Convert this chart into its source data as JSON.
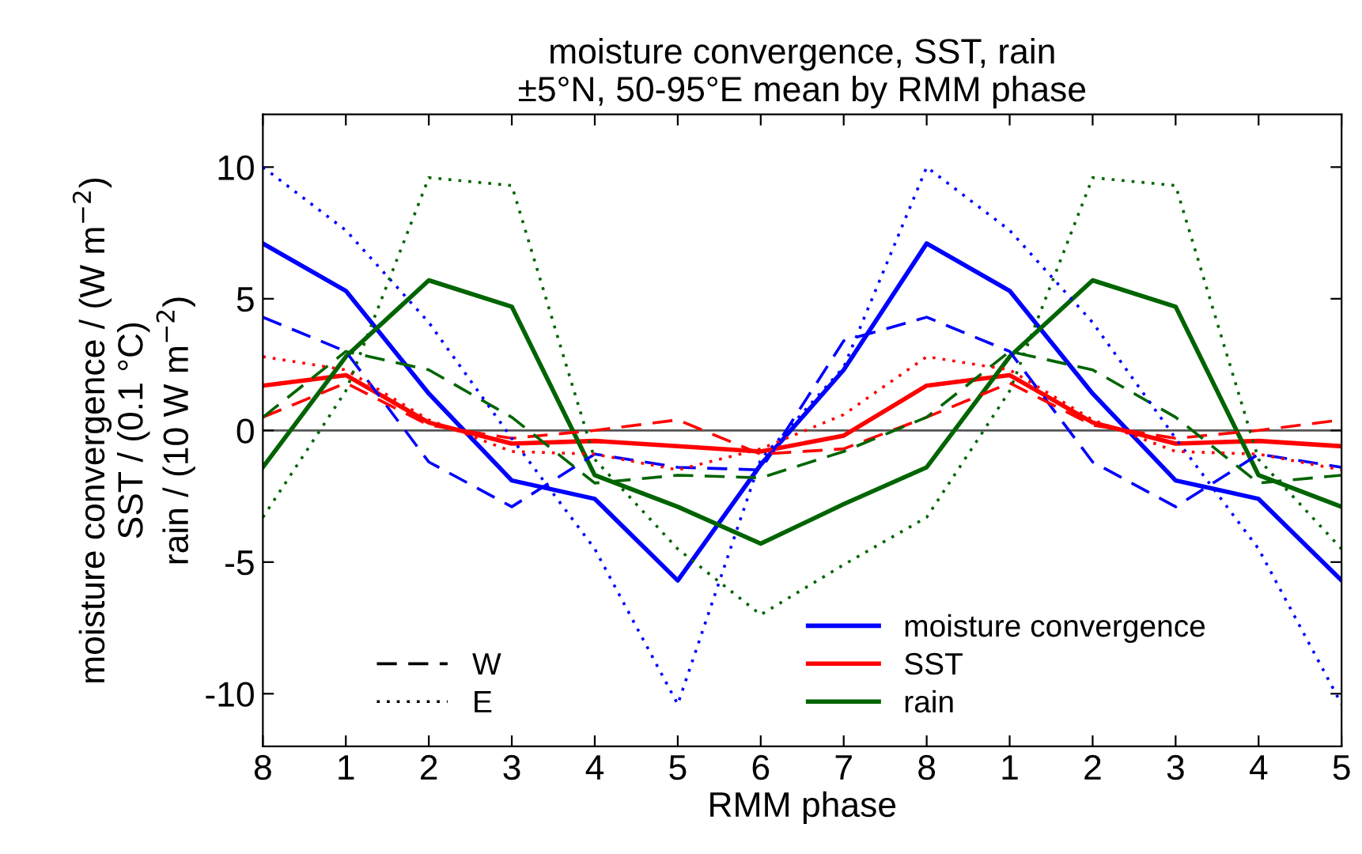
{
  "chart_data": {
    "type": "line",
    "title": "moisture convergence, SST, rain\n±5°N, 50-95°E mean by RMM phase",
    "xlabel": "RMM phase",
    "ylabel": "moisture convergence / (W m$^{−2}$)\nSST / (0.1 °C)\nrain / (10 W m$^{−2}$)",
    "categories": [
      "8",
      "1",
      "2",
      "3",
      "4",
      "5",
      "6",
      "7",
      "8",
      "1",
      "2",
      "3",
      "4",
      "5"
    ],
    "ylim": [
      -12,
      12
    ],
    "yticks": [
      {
        "value": -10,
        "label": "-10"
      },
      {
        "value": -5,
        "label": "-5"
      },
      0,
      5,
      10
    ],
    "grid": false,
    "legend": "bottom right",
    "annotations": [
      "W",
      "E"
    ],
    "ref_lines": [
      {
        "axis": "y",
        "value": 0,
        "color": "#555555"
      }
    ],
    "series": [
      {
        "name": "moisture convergence",
        "color": "#0000ff",
        "line_style": "solid",
        "values": [
          7.1,
          5.3,
          1.4,
          -1.9,
          -2.6,
          -5.7,
          -1.3,
          2.3,
          7.1,
          5.3,
          1.4,
          -1.9,
          -2.6,
          -5.7
        ]
      },
      {
        "name": "SST",
        "color": "#ff0000",
        "line_style": "solid",
        "values": [
          1.7,
          2.1,
          0.3,
          -0.5,
          -0.4,
          -0.6,
          -0.8,
          -0.2,
          1.7,
          2.1,
          0.3,
          -0.5,
          -0.4,
          -0.6
        ]
      },
      {
        "name": "rain",
        "color": "#006400",
        "line_style": "solid",
        "values": [
          -1.4,
          2.8,
          5.7,
          4.7,
          -1.7,
          -2.9,
          -4.3,
          -2.8,
          -1.4,
          2.8,
          5.7,
          4.7,
          -1.7,
          -2.9
        ]
      },
      {
        "color": "#0000ff",
        "line_style": "dashed",
        "values": [
          4.3,
          3.0,
          -1.2,
          -2.9,
          -0.9,
          -1.4,
          -1.5,
          3.4,
          4.3,
          3.0,
          -1.2,
          -2.9,
          -0.9,
          -1.4
        ]
      },
      {
        "color": "#ff0000",
        "line_style": "dashed",
        "values": [
          0.5,
          1.8,
          0.2,
          -0.3,
          0.0,
          0.4,
          -0.9,
          -0.7,
          0.5,
          1.8,
          0.2,
          -0.3,
          0.0,
          0.4
        ]
      },
      {
        "color": "#006400",
        "line_style": "dashed",
        "values": [
          0.5,
          3.0,
          2.3,
          0.5,
          -2.0,
          -1.7,
          -1.8,
          -0.8,
          0.5,
          3.0,
          2.3,
          0.5,
          -2.0,
          -1.7
        ]
      },
      {
        "color": "#0000ff",
        "line_style": "dotted",
        "values": [
          10.0,
          7.6,
          4.1,
          -0.3,
          -4.5,
          -10.4,
          -1.1,
          2.4,
          10.0,
          7.6,
          4.1,
          -0.3,
          -4.5,
          -10.4
        ]
      },
      {
        "color": "#ff0000",
        "line_style": "dotted",
        "values": [
          2.8,
          2.3,
          0.4,
          -0.8,
          -0.9,
          -1.5,
          -0.7,
          0.6,
          2.8,
          2.3,
          0.4,
          -0.8,
          -0.9,
          -1.5
        ]
      },
      {
        "color": "#006400",
        "line_style": "dotted",
        "values": [
          -3.3,
          1.5,
          9.6,
          9.3,
          -1.1,
          -4.5,
          -7.0,
          -5.1,
          -3.3,
          1.5,
          9.6,
          9.3,
          -1.1,
          -4.5
        ]
      }
    ]
  }
}
